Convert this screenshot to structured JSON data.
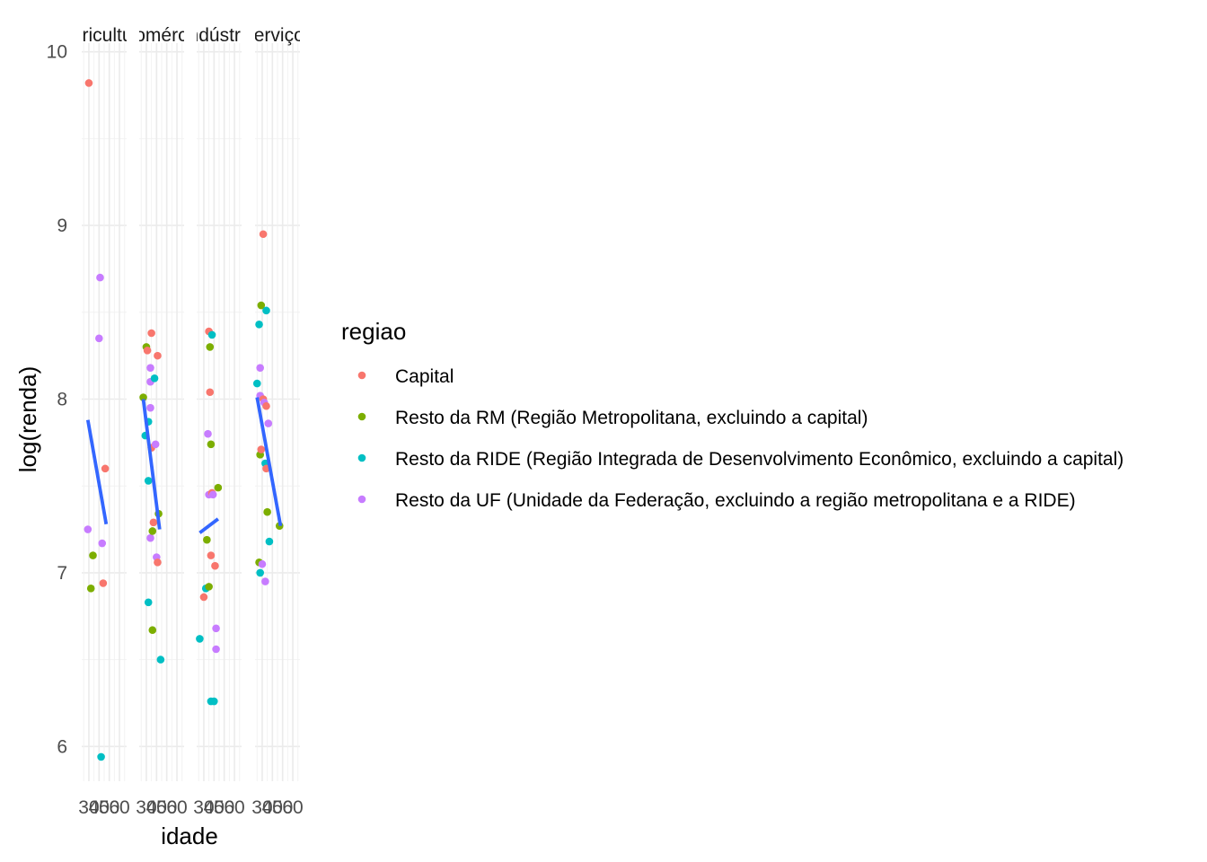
{
  "chart_data": {
    "type": "scatter",
    "title": "",
    "xlabel": "idade",
    "ylabel": "log(renda)",
    "ylim": [
      5.8,
      10.05
    ],
    "y_ticks": [
      6,
      7,
      8,
      9,
      10
    ],
    "x_ticks": [
      30,
      40,
      50,
      60
    ],
    "x_tick_labels": [
      "30",
      "40",
      "50",
      "60"
    ],
    "xlim": [
      23,
      67
    ],
    "grid": true,
    "legend_title": "regiao",
    "legend_position": "right",
    "regions": [
      {
        "name": "Capital",
        "color": "#F8766D"
      },
      {
        "name": "Resto da RM (Região Metropolitana, excluindo a capital)",
        "color": "#7CAE00"
      },
      {
        "name": "Resto da RIDE (Região Integrada de Desenvolvimento Econômico, excluindo a capital)",
        "color": "#00BFC4"
      },
      {
        "name": "Resto da UF  (Unidade da Federação, excluindo a região metropolitana e a RIDE)",
        "color": "#C77CFF"
      }
    ],
    "trend_color": "#3366FF",
    "panels": [
      {
        "label": "Agricultura",
        "points": [
          {
            "x": 30,
            "y": 9.82,
            "r": 0
          },
          {
            "x": 32,
            "y": 6.91,
            "r": 1
          },
          {
            "x": 34,
            "y": 7.1,
            "r": 1
          },
          {
            "x": 29,
            "y": 7.25,
            "r": 3
          },
          {
            "x": 40,
            "y": 8.35,
            "r": 3
          },
          {
            "x": 41,
            "y": 8.7,
            "r": 3
          },
          {
            "x": 42,
            "y": 5.94,
            "r": 2
          },
          {
            "x": 43,
            "y": 7.17,
            "r": 3
          },
          {
            "x": 44,
            "y": 6.94,
            "r": 0
          },
          {
            "x": 46,
            "y": 7.6,
            "r": 0
          }
        ],
        "trend": {
          "x": [
            29,
            47
          ],
          "y": [
            7.88,
            7.28
          ]
        }
      },
      {
        "label": "Comércio",
        "points": [
          {
            "x": 27,
            "y": 8.01,
            "r": 1
          },
          {
            "x": 29,
            "y": 7.79,
            "r": 2
          },
          {
            "x": 30,
            "y": 8.3,
            "r": 1
          },
          {
            "x": 31,
            "y": 8.28,
            "r": 0
          },
          {
            "x": 32,
            "y": 7.87,
            "r": 2
          },
          {
            "x": 32,
            "y": 6.83,
            "r": 2
          },
          {
            "x": 32,
            "y": 7.53,
            "r": 2
          },
          {
            "x": 34,
            "y": 8.18,
            "r": 3
          },
          {
            "x": 34,
            "y": 8.1,
            "r": 3
          },
          {
            "x": 34,
            "y": 7.95,
            "r": 3
          },
          {
            "x": 34,
            "y": 7.2,
            "r": 3
          },
          {
            "x": 35,
            "y": 8.38,
            "r": 0
          },
          {
            "x": 35,
            "y": 7.72,
            "r": 0
          },
          {
            "x": 36,
            "y": 7.24,
            "r": 1
          },
          {
            "x": 36,
            "y": 6.67,
            "r": 1
          },
          {
            "x": 37,
            "y": 7.29,
            "r": 0
          },
          {
            "x": 38,
            "y": 8.12,
            "r": 2
          },
          {
            "x": 39,
            "y": 7.74,
            "r": 3
          },
          {
            "x": 40,
            "y": 7.09,
            "r": 3
          },
          {
            "x": 41,
            "y": 8.25,
            "r": 0
          },
          {
            "x": 41,
            "y": 7.06,
            "r": 0
          },
          {
            "x": 42,
            "y": 7.34,
            "r": 1
          },
          {
            "x": 44,
            "y": 6.5,
            "r": 2
          }
        ],
        "trend": {
          "x": [
            27,
            43
          ],
          "y": [
            8.0,
            7.25
          ]
        }
      },
      {
        "label": "Indústria",
        "points": [
          {
            "x": 26,
            "y": 6.62,
            "r": 2
          },
          {
            "x": 30,
            "y": 6.86,
            "r": 0
          },
          {
            "x": 32,
            "y": 6.91,
            "r": 2
          },
          {
            "x": 33,
            "y": 7.19,
            "r": 1
          },
          {
            "x": 34,
            "y": 7.8,
            "r": 3
          },
          {
            "x": 35,
            "y": 6.92,
            "r": 1
          },
          {
            "x": 35,
            "y": 7.45,
            "r": 3
          },
          {
            "x": 35,
            "y": 8.39,
            "r": 0
          },
          {
            "x": 36,
            "y": 8.3,
            "r": 1
          },
          {
            "x": 36,
            "y": 8.04,
            "r": 0
          },
          {
            "x": 37,
            "y": 7.1,
            "r": 0
          },
          {
            "x": 37,
            "y": 7.74,
            "r": 1
          },
          {
            "x": 37,
            "y": 6.26,
            "r": 2
          },
          {
            "x": 38,
            "y": 8.37,
            "r": 2
          },
          {
            "x": 38,
            "y": 7.46,
            "r": 0
          },
          {
            "x": 39,
            "y": 7.45,
            "r": 3
          },
          {
            "x": 40,
            "y": 6.26,
            "r": 2
          },
          {
            "x": 41,
            "y": 7.04,
            "r": 0
          },
          {
            "x": 42,
            "y": 6.56,
            "r": 3
          },
          {
            "x": 42,
            "y": 6.68,
            "r": 3
          },
          {
            "x": 44,
            "y": 7.49,
            "r": 1
          }
        ],
        "trend": {
          "x": [
            26,
            44
          ],
          "y": [
            7.23,
            7.31
          ]
        }
      },
      {
        "label": "Serviços",
        "points": [
          {
            "x": 25,
            "y": 8.09,
            "r": 2
          },
          {
            "x": 27,
            "y": 8.43,
            "r": 2
          },
          {
            "x": 27,
            "y": 7.06,
            "r": 1
          },
          {
            "x": 28,
            "y": 8.18,
            "r": 3
          },
          {
            "x": 28,
            "y": 8.02,
            "r": 3
          },
          {
            "x": 28,
            "y": 7.68,
            "r": 1
          },
          {
            "x": 28,
            "y": 7.0,
            "r": 2
          },
          {
            "x": 29,
            "y": 8.54,
            "r": 1
          },
          {
            "x": 29,
            "y": 7.71,
            "r": 0
          },
          {
            "x": 30,
            "y": 7.05,
            "r": 3
          },
          {
            "x": 31,
            "y": 8.95,
            "r": 0
          },
          {
            "x": 31,
            "y": 8.0,
            "r": 0
          },
          {
            "x": 32,
            "y": 7.98,
            "r": 3
          },
          {
            "x": 33,
            "y": 7.63,
            "r": 2
          },
          {
            "x": 33,
            "y": 6.95,
            "r": 3
          },
          {
            "x": 34,
            "y": 7.96,
            "r": 0
          },
          {
            "x": 34,
            "y": 7.6,
            "r": 0
          },
          {
            "x": 34,
            "y": 8.51,
            "r": 2
          },
          {
            "x": 35,
            "y": 7.35,
            "r": 1
          },
          {
            "x": 36,
            "y": 7.86,
            "r": 3
          },
          {
            "x": 37,
            "y": 7.18,
            "r": 2
          },
          {
            "x": 47,
            "y": 7.27,
            "r": 1
          }
        ],
        "trend": {
          "x": [
            25,
            48
          ],
          "y": [
            8.01,
            7.27
          ]
        }
      }
    ]
  }
}
